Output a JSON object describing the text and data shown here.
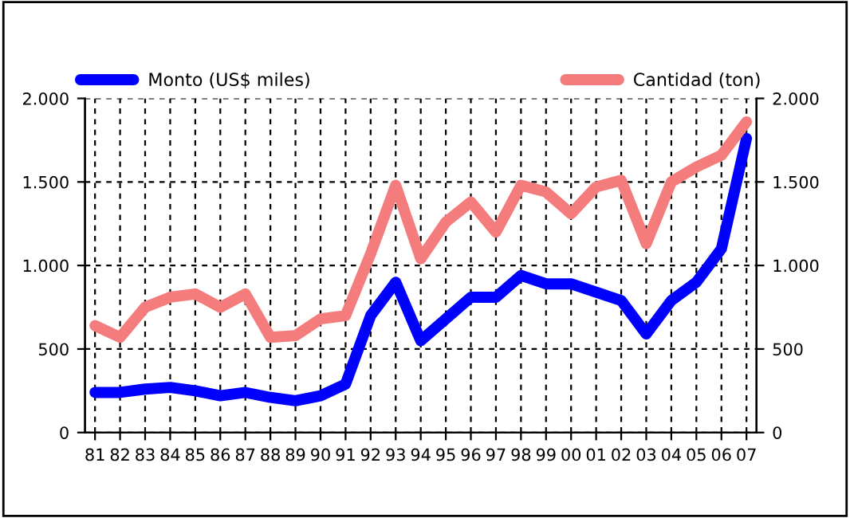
{
  "chart_data": {
    "type": "line",
    "categories": [
      "81",
      "82",
      "83",
      "84",
      "85",
      "86",
      "87",
      "88",
      "89",
      "90",
      "91",
      "92",
      "93",
      "94",
      "95",
      "96",
      "97",
      "98",
      "99",
      "00",
      "01",
      "02",
      "03",
      "04",
      "05",
      "06",
      "07"
    ],
    "series": [
      {
        "name": "Monto (US$ miles)",
        "color": "#0000ff",
        "values": [
          240,
          240,
          260,
          270,
          250,
          220,
          240,
          210,
          190,
          220,
          290,
          700,
          900,
          550,
          680,
          810,
          810,
          940,
          890,
          890,
          840,
          790,
          590,
          790,
          900,
          1100,
          1760
        ]
      },
      {
        "name": "Cantidad (ton)",
        "color": "#f47c7c",
        "axis": "y2",
        "values": [
          640,
          570,
          750,
          810,
          830,
          750,
          830,
          570,
          580,
          680,
          700,
          1070,
          1480,
          1040,
          1260,
          1380,
          1200,
          1480,
          1440,
          1310,
          1470,
          1510,
          1130,
          1500,
          1590,
          1660,
          1860
        ]
      }
    ],
    "ylim": [
      0,
      2000
    ],
    "yticks": [
      0,
      500,
      {
        "value": 1000,
        "label": "1.000"
      },
      {
        "value": 1500,
        "label": "1.500"
      },
      {
        "value": 2000,
        "label": "2.000"
      }
    ],
    "y2lim": [
      0,
      2000
    ],
    "y2ticks": [
      0,
      500,
      {
        "value": 1000,
        "label": "1.000"
      },
      {
        "value": 1500,
        "label": "1.500"
      },
      {
        "value": 2000,
        "label": "2.000"
      }
    ],
    "grid": true,
    "legend": "top",
    "marker": "none",
    "line_style": "solid"
  }
}
